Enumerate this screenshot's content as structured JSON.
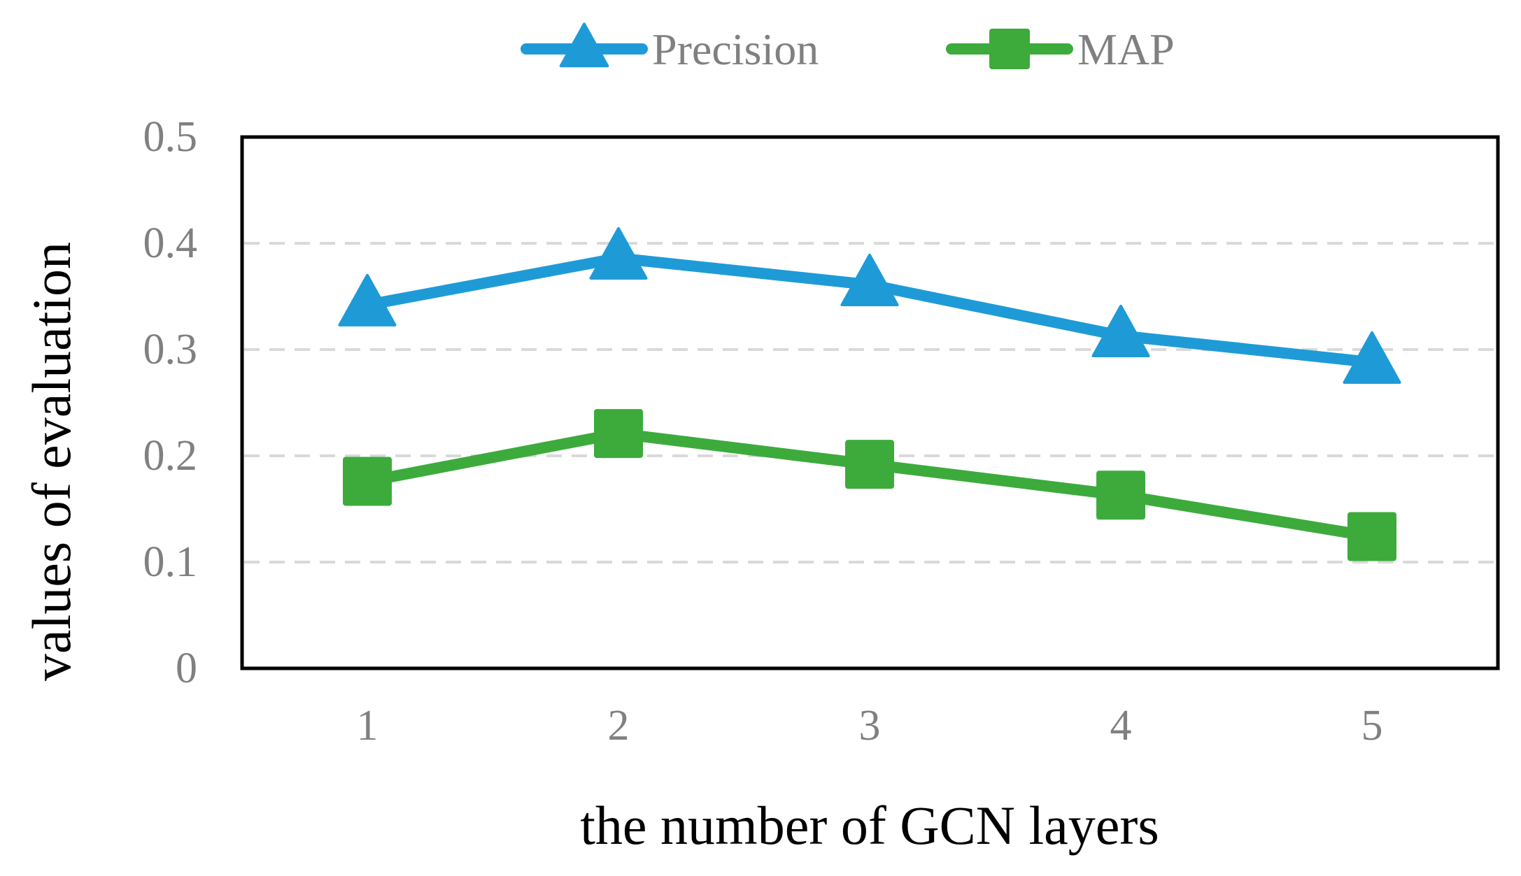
{
  "chart_data": {
    "type": "line",
    "title": "",
    "xlabel": "the number of GCN layers",
    "ylabel": "values of evaluation",
    "categories": [
      "1",
      "2",
      "3",
      "4",
      "5"
    ],
    "ylim": [
      0,
      0.5
    ],
    "yticks": [
      0,
      0.1,
      0.2,
      0.3,
      0.4,
      0.5
    ],
    "ytick_labels": [
      "0",
      "0.1",
      "0.2",
      "0.3",
      "0.4",
      "0.5"
    ],
    "grid": "horizontal dashed",
    "legend_position": "top-center",
    "series": [
      {
        "name": "Precision",
        "marker": "triangle",
        "color": "#1e9bd7",
        "values": [
          0.342,
          0.386,
          0.361,
          0.313,
          0.288
        ]
      },
      {
        "name": "MAP",
        "marker": "square",
        "color": "#3cab3c",
        "values": [
          0.176,
          0.221,
          0.192,
          0.163,
          0.124
        ]
      }
    ]
  },
  "colors": {
    "tick_text": "#808080",
    "grid": "#d9d9d9",
    "frame": "#000000"
  }
}
